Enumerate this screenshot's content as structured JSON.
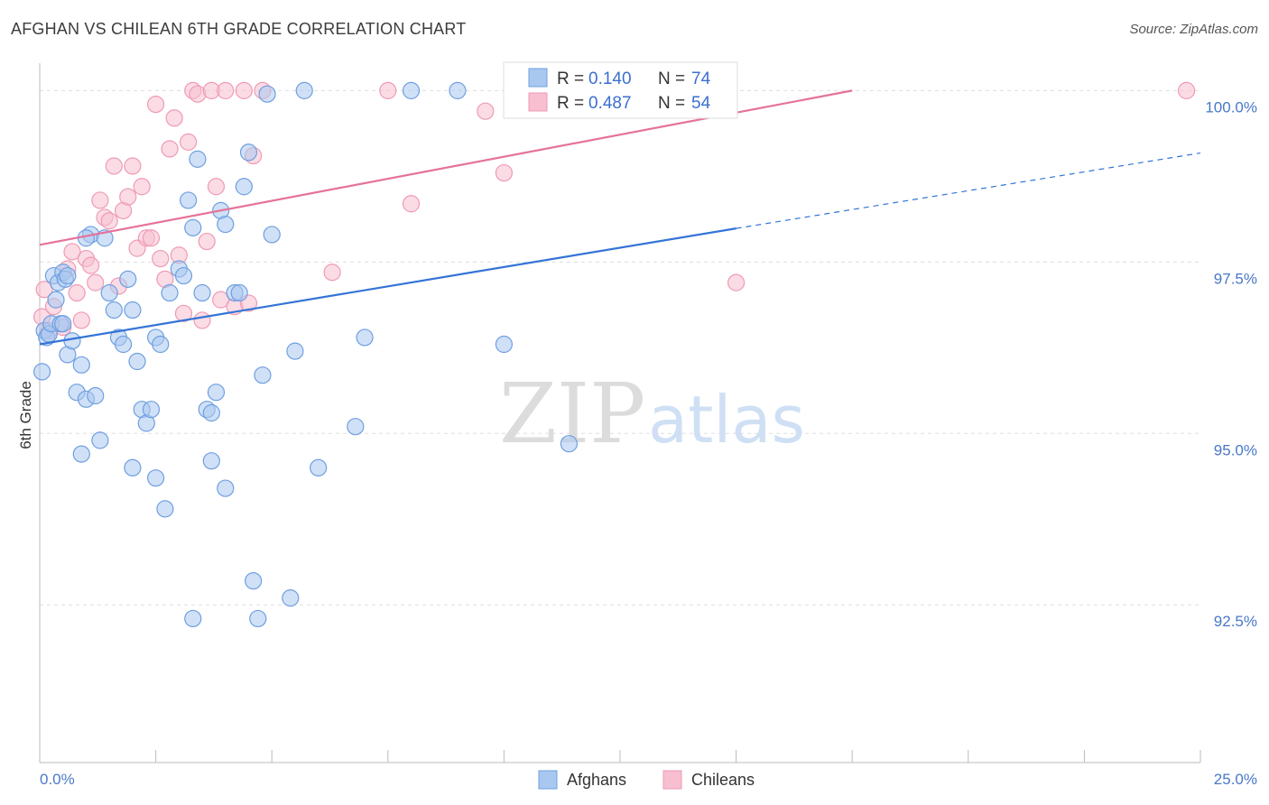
{
  "title": "AFGHAN VS CHILEAN 6TH GRADE CORRELATION CHART",
  "source": "Source: ZipAtlas.com",
  "watermark": {
    "zip": "ZIP",
    "atlas": "atlas"
  },
  "legend": {
    "rows": [
      {
        "r_label": "R =",
        "r_value": "0.140",
        "n_label": "N =",
        "n_value": "74"
      },
      {
        "r_label": "R =",
        "r_value": "0.487",
        "n_label": "N =",
        "n_value": "54"
      }
    ]
  },
  "bottom_legend": [
    "Afghans",
    "Chileans"
  ],
  "colors": {
    "afghan_fill": "#a9c8f0",
    "afghan_stroke": "#6f9fe0",
    "afghan_line": "#3374d6",
    "chilean_fill": "#f7bfd0",
    "chilean_stroke": "#ef9ab5",
    "chilean_line": "#e5729a",
    "tick_label": "#4a78c8",
    "grid": "#dddddd"
  },
  "chart_data": {
    "type": "scatter",
    "title": "AFGHAN VS CHILEAN 6TH GRADE CORRELATION CHART",
    "ylabel": "6th Grade",
    "xlabel": "",
    "xlim": [
      0,
      25
    ],
    "ylim": [
      90.2,
      100.4
    ],
    "x_tick_labels": [
      "0.0%",
      "25.0%"
    ],
    "y_ticks": [
      92.5,
      95.0,
      97.5,
      100.0
    ],
    "y_tick_labels": [
      "92.5%",
      "95.0%",
      "97.5%",
      "100.0%"
    ],
    "grid": true,
    "legend_position": "top-center",
    "series": [
      {
        "name": "Afghans",
        "r": 0.14,
        "n": 74,
        "trend": {
          "x0": 0,
          "y0": 96.3,
          "x1": 15,
          "y1": 97.99,
          "dashed_to_x": 25,
          "dashed_to_y": 99.09
        },
        "points": [
          [
            0.1,
            96.5
          ],
          [
            0.15,
            96.4
          ],
          [
            0.2,
            96.45
          ],
          [
            0.25,
            96.6
          ],
          [
            0.3,
            97.3
          ],
          [
            0.35,
            96.95
          ],
          [
            0.4,
            97.2
          ],
          [
            0.45,
            96.6
          ],
          [
            0.5,
            97.35
          ],
          [
            0.55,
            97.25
          ],
          [
            0.6,
            97.3
          ],
          [
            0.05,
            95.9
          ],
          [
            0.5,
            96.6
          ],
          [
            0.6,
            96.15
          ],
          [
            0.7,
            96.35
          ],
          [
            0.8,
            95.6
          ],
          [
            0.9,
            96.0
          ],
          [
            1.0,
            95.5
          ],
          [
            1.2,
            95.55
          ],
          [
            1.3,
            94.9
          ],
          [
            0.9,
            94.7
          ],
          [
            1.1,
            97.9
          ],
          [
            1.0,
            97.85
          ],
          [
            1.4,
            97.85
          ],
          [
            1.5,
            97.05
          ],
          [
            1.6,
            96.8
          ],
          [
            1.7,
            96.4
          ],
          [
            1.8,
            96.3
          ],
          [
            1.9,
            97.25
          ],
          [
            2.0,
            96.8
          ],
          [
            2.1,
            96.05
          ],
          [
            2.2,
            95.35
          ],
          [
            2.3,
            95.15
          ],
          [
            2.4,
            95.35
          ],
          [
            2.5,
            96.4
          ],
          [
            2.6,
            96.3
          ],
          [
            2.8,
            97.05
          ],
          [
            3.0,
            97.4
          ],
          [
            3.1,
            97.3
          ],
          [
            3.2,
            98.4
          ],
          [
            3.3,
            98.0
          ],
          [
            3.4,
            99.0
          ],
          [
            3.5,
            97.05
          ],
          [
            3.6,
            95.35
          ],
          [
            3.7,
            95.3
          ],
          [
            3.8,
            95.6
          ],
          [
            3.9,
            98.25
          ],
          [
            4.0,
            98.05
          ],
          [
            4.2,
            97.05
          ],
          [
            4.3,
            97.05
          ],
          [
            4.4,
            98.6
          ],
          [
            4.5,
            99.1
          ],
          [
            4.6,
            92.85
          ],
          [
            4.7,
            92.3
          ],
          [
            4.8,
            95.85
          ],
          [
            4.9,
            99.95
          ],
          [
            5.0,
            97.9
          ],
          [
            5.4,
            92.6
          ],
          [
            5.5,
            96.2
          ],
          [
            5.7,
            100.0
          ],
          [
            6.0,
            94.5
          ],
          [
            7.0,
            96.4
          ],
          [
            6.8,
            95.1
          ],
          [
            8.0,
            100.0
          ],
          [
            9.0,
            100.0
          ],
          [
            10.0,
            96.3
          ],
          [
            11.0,
            100.0
          ],
          [
            11.4,
            94.85
          ],
          [
            2.0,
            94.5
          ],
          [
            2.5,
            94.35
          ],
          [
            2.7,
            93.9
          ],
          [
            3.3,
            92.3
          ],
          [
            3.7,
            94.6
          ],
          [
            4.0,
            94.2
          ]
        ]
      },
      {
        "name": "Chileans",
        "r": 0.487,
        "n": 54,
        "trend": {
          "x0": 0,
          "y0": 97.75,
          "x1": 17.5,
          "y1": 100.0
        },
        "points": [
          [
            0.05,
            96.7
          ],
          [
            0.1,
            97.1
          ],
          [
            0.2,
            96.5
          ],
          [
            0.3,
            96.85
          ],
          [
            0.5,
            96.55
          ],
          [
            0.6,
            97.4
          ],
          [
            0.7,
            97.65
          ],
          [
            0.8,
            97.05
          ],
          [
            0.9,
            96.65
          ],
          [
            1.0,
            97.55
          ],
          [
            1.1,
            97.45
          ],
          [
            1.2,
            97.2
          ],
          [
            1.3,
            98.4
          ],
          [
            1.4,
            98.15
          ],
          [
            1.5,
            98.1
          ],
          [
            1.6,
            98.9
          ],
          [
            1.7,
            97.15
          ],
          [
            1.8,
            98.25
          ],
          [
            1.9,
            98.45
          ],
          [
            2.0,
            98.9
          ],
          [
            2.1,
            97.7
          ],
          [
            2.2,
            98.6
          ],
          [
            2.3,
            97.85
          ],
          [
            2.4,
            97.85
          ],
          [
            2.5,
            99.8
          ],
          [
            2.6,
            97.55
          ],
          [
            2.7,
            97.25
          ],
          [
            2.8,
            99.15
          ],
          [
            2.9,
            99.6
          ],
          [
            3.0,
            97.6
          ],
          [
            3.1,
            96.75
          ],
          [
            3.2,
            99.25
          ],
          [
            3.3,
            100.0
          ],
          [
            3.4,
            99.95
          ],
          [
            3.5,
            96.65
          ],
          [
            3.6,
            97.8
          ],
          [
            3.7,
            100.0
          ],
          [
            3.8,
            98.6
          ],
          [
            3.9,
            96.95
          ],
          [
            4.0,
            100.0
          ],
          [
            4.2,
            96.85
          ],
          [
            4.4,
            100.0
          ],
          [
            4.5,
            96.9
          ],
          [
            4.6,
            99.05
          ],
          [
            4.8,
            100.0
          ],
          [
            6.3,
            97.35
          ],
          [
            7.5,
            100.0
          ],
          [
            8.0,
            98.35
          ],
          [
            9.6,
            99.7
          ],
          [
            10.0,
            98.8
          ],
          [
            13.0,
            100.0
          ],
          [
            14.0,
            100.0
          ],
          [
            15.0,
            97.2
          ],
          [
            24.7,
            100.0
          ]
        ]
      }
    ]
  }
}
